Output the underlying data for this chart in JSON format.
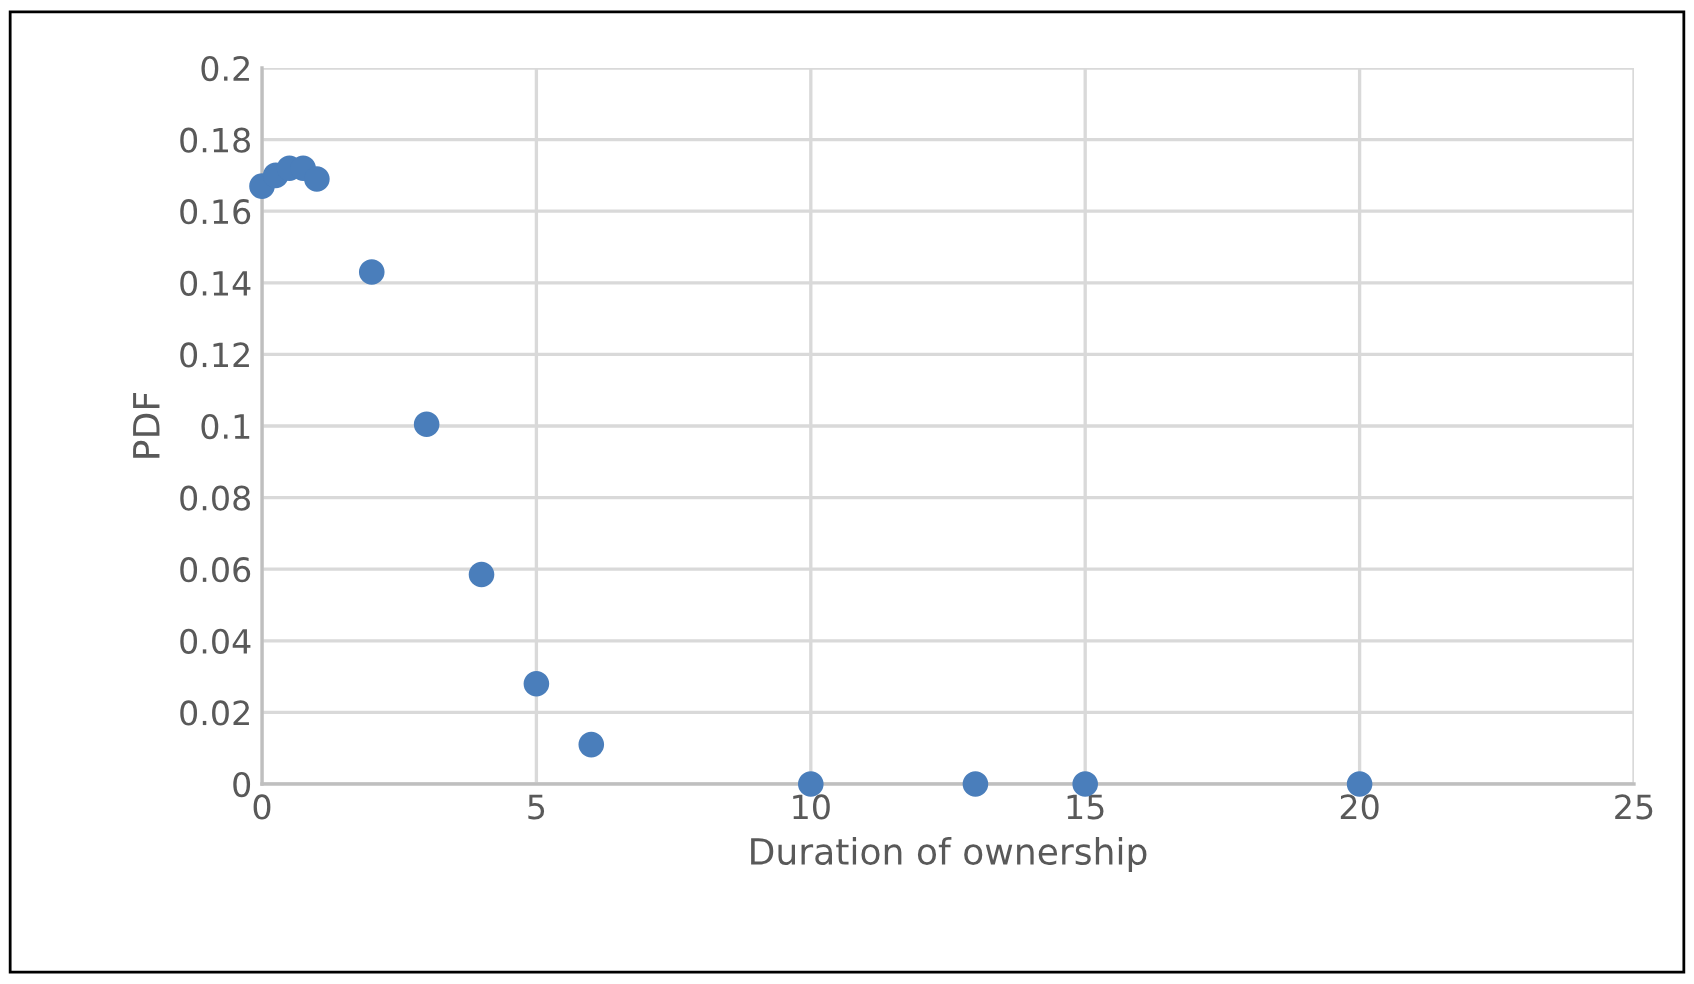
{
  "chart_data": {
    "type": "scatter",
    "xlabel": "Duration of ownership",
    "ylabel": "PDF",
    "x": [
      0,
      0.25,
      0.5,
      0.75,
      1,
      2,
      3,
      4,
      5,
      6,
      10,
      13,
      15,
      20
    ],
    "values": [
      0.167,
      0.17,
      0.172,
      0.172,
      0.169,
      0.143,
      0.1005,
      0.0585,
      0.028,
      0.011,
      0,
      0,
      0,
      0
    ],
    "color": "#4a7ebb",
    "marker": "circle",
    "xlim": [
      0,
      25
    ],
    "xticks": [
      0,
      5,
      10,
      15,
      20,
      25
    ],
    "ylim": [
      0,
      0.2
    ],
    "yticks": [
      0,
      0.02,
      0.04,
      0.06,
      0.08,
      0.1,
      0.12,
      0.14,
      0.16,
      0.18,
      0.2
    ],
    "grid": true
  }
}
